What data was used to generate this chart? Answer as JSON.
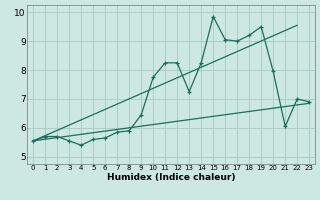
{
  "xlabel": "Humidex (Indice chaleur)",
  "xlim": [
    -0.5,
    23.5
  ],
  "ylim": [
    4.75,
    10.25
  ],
  "yticks": [
    5,
    6,
    7,
    8,
    9,
    10
  ],
  "xticks": [
    0,
    1,
    2,
    3,
    4,
    5,
    6,
    7,
    8,
    9,
    10,
    11,
    12,
    13,
    14,
    15,
    16,
    17,
    18,
    19,
    20,
    21,
    22,
    23
  ],
  "bg_color": "#cce8e0",
  "grid_color": "#aacfc8",
  "line_color": "#1a6e5e",
  "line1_x": [
    0,
    1,
    2,
    3,
    4,
    5,
    6,
    7,
    8,
    9,
    10,
    11,
    12,
    13,
    14,
    15,
    16,
    17,
    18,
    19,
    20,
    21,
    22,
    23
  ],
  "line1_y": [
    5.55,
    5.7,
    5.7,
    5.55,
    5.4,
    5.6,
    5.65,
    5.85,
    5.9,
    6.45,
    7.75,
    8.25,
    8.25,
    7.25,
    8.25,
    9.85,
    9.05,
    9.0,
    9.2,
    9.5,
    7.95,
    6.05,
    7.0,
    6.9
  ],
  "line2_x": [
    0,
    22
  ],
  "line2_y": [
    5.55,
    9.55
  ],
  "line3_x": [
    0,
    23
  ],
  "line3_y": [
    5.55,
    6.85
  ]
}
